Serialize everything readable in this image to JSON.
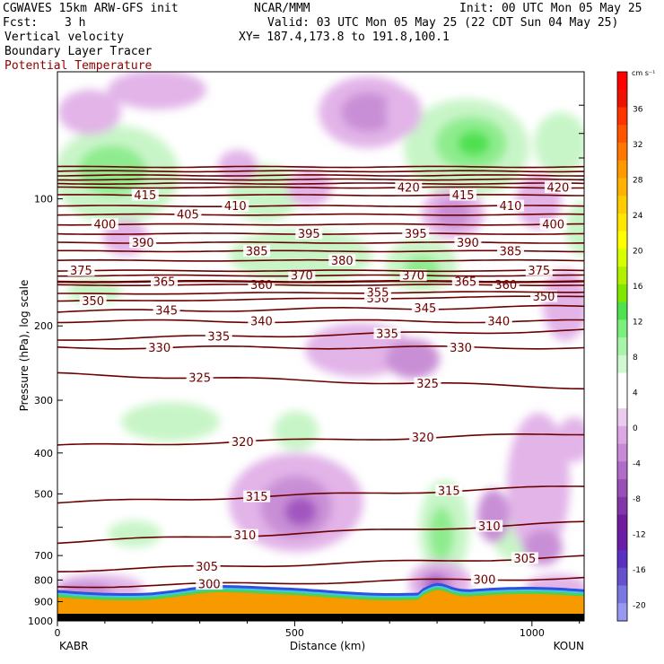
{
  "header": {
    "model": "CGWAVES 15km ARW-GFS init",
    "org": "NCAR/MMM",
    "init": "Init: 00 UTC Mon 05 May 25",
    "fcst_label": "Fcst:",
    "fcst_value": "3 h",
    "valid": "Valid: 03 UTC Mon 05 May 25 (22 CDT Sun 04 May 25)",
    "field1": "Vertical velocity",
    "field2": "Boundary Layer Tracer",
    "field3": "Potential Temperature",
    "xy": "XY= 187.4,173.8 to 191.8,100.1"
  },
  "colors": {
    "theta": "#6b0000",
    "purple_light": "#e2b4e8",
    "purple_mid": "#c98fd6",
    "purple_dark": "#a357c0",
    "green_light": "#c8f5c8",
    "green_mid": "#8eec8e",
    "green_dark": "#4fe04f",
    "terrain_orange": "#f79a00"
  },
  "chart_data": {
    "type": "cross-section",
    "ylabel": "Pressure (hPa), log scale",
    "xlabel": "Distance (km)",
    "y_scale": "log",
    "ylim": [
      1000,
      50
    ],
    "xlim": [
      0,
      1110
    ],
    "y_ticks": [
      100,
      200,
      300,
      400,
      500,
      600,
      700,
      800,
      900,
      1000
    ],
    "y_tick_labels": [
      "100",
      "200",
      "300",
      "400",
      "500",
      "",
      "700",
      "800",
      "900",
      "1000"
    ],
    "x_ticks": [
      0,
      500,
      1000
    ],
    "left_end_label": "KABR",
    "right_end_label": "KOUN",
    "theta_contours": [
      {
        "value": 300,
        "p0": 830,
        "p1": 790,
        "label_x": [
          320,
          900
        ]
      },
      {
        "value": 305,
        "p0": 760,
        "p1": 705,
        "label_x": [
          315,
          985
        ]
      },
      {
        "value": 310,
        "p0": 650,
        "p1": 585,
        "label_x": [
          395,
          910
        ]
      },
      {
        "value": 315,
        "p0": 525,
        "p1": 480,
        "label_x": [
          420,
          825
        ]
      },
      {
        "value": 320,
        "p0": 385,
        "p1": 360,
        "label_x": [
          390,
          770
        ]
      },
      {
        "value": 325,
        "p0": 260,
        "p1": 280,
        "label_x": [
          300,
          780
        ]
      },
      {
        "value": 330,
        "p0": 225,
        "p1": 225,
        "label_x": [
          215,
          850
        ]
      },
      {
        "value": 335,
        "p0": 215,
        "p1": 205,
        "label_x": [
          340,
          695
        ]
      },
      {
        "value": 340,
        "p0": 195,
        "p1": 195,
        "label_x": [
          430,
          930
        ]
      },
      {
        "value": 345,
        "p0": 185,
        "p1": 180,
        "label_x": [
          230,
          775
        ]
      },
      {
        "value": 350,
        "p0": 175,
        "p1": 170,
        "label_x": [
          75,
          675,
          1025
        ]
      },
      {
        "value": 355,
        "p0": 168,
        "p1": 166,
        "label_x": [
          675
        ]
      },
      {
        "value": 360,
        "p0": 160,
        "p1": 160,
        "label_x": [
          430,
          945
        ]
      },
      {
        "value": 365,
        "p0": 157,
        "p1": 157,
        "label_x": [
          225,
          860
        ]
      },
      {
        "value": 370,
        "p0": 152,
        "p1": 152,
        "label_x": [
          515,
          750
        ]
      },
      {
        "value": 375,
        "p0": 148,
        "p1": 148,
        "label_x": [
          50,
          1015
        ]
      },
      {
        "value": 380,
        "p0": 140,
        "p1": 140,
        "label_x": [
          600
        ]
      },
      {
        "value": 385,
        "p0": 133,
        "p1": 133,
        "label_x": [
          420,
          955
        ]
      },
      {
        "value": 390,
        "p0": 127,
        "p1": 127,
        "label_x": [
          180,
          865
        ]
      },
      {
        "value": 395,
        "p0": 121,
        "p1": 121,
        "label_x": [
          530,
          755
        ]
      },
      {
        "value": 400,
        "p0": 115,
        "p1": 115,
        "label_x": [
          100,
          1045
        ]
      },
      {
        "value": 405,
        "p0": 109,
        "p1": 109,
        "label_x": [
          275
        ]
      },
      {
        "value": 410,
        "p0": 104,
        "p1": 104,
        "label_x": [
          375,
          955
        ]
      },
      {
        "value": 415,
        "p0": 98,
        "p1": 98,
        "label_x": [
          185,
          855
        ]
      },
      {
        "value": 420,
        "p0": 94,
        "p1": 94,
        "label_x": [
          740,
          1055
        ]
      }
    ],
    "extra_theta_lines_p": [
      92,
      90,
      88,
      86,
      84
    ],
    "colorbar": {
      "unit": "cm s⁻¹",
      "labels": [
        "36",
        "32",
        "28",
        "24",
        "20",
        "16",
        "12",
        "8",
        "4",
        "0",
        "-4",
        "-8",
        "-12",
        "-16",
        "-20"
      ],
      "colors": [
        "#ff0000",
        "#ee1100",
        "#ff3300",
        "#ff5500",
        "#ff7700",
        "#ff9900",
        "#ffb300",
        "#ffcc00",
        "#ffe600",
        "#ffff00",
        "#d8ff00",
        "#b0f000",
        "#80e800",
        "#50e050",
        "#7cf07c",
        "#a8f5a8",
        "#d0f8d0",
        "#ffffff",
        "#ffffff",
        "#ecccee",
        "#dca8e4",
        "#c88ad6",
        "#b06cc8",
        "#9850b8",
        "#8236a8",
        "#701e9e",
        "#6a1ea8",
        "#5a30c0",
        "#6650cc",
        "#7a78e0",
        "#9898f0"
      ]
    }
  }
}
